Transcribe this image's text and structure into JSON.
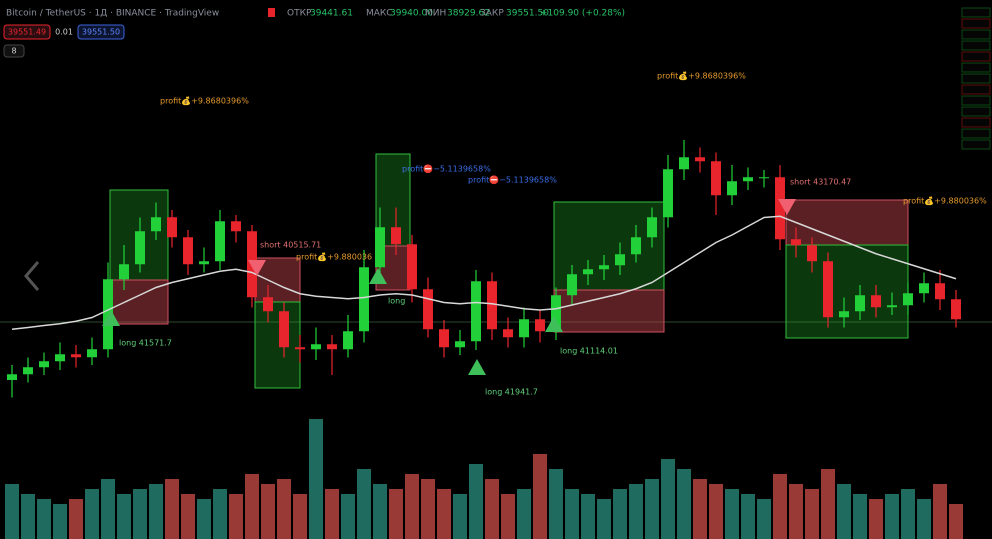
{
  "header": {
    "symbol": "Bitcoin / TetherUS · 1Д · BINANCE · TradingView",
    "open_label": "ОТКР",
    "open": "39441.61",
    "high_label": "МАКС",
    "high": "39940.00",
    "low_label": "МИН",
    "low": "38929.62",
    "close_label": "ЗАКР",
    "close": "39551.50",
    "change": "+109.90 (+0.28%)",
    "bid": "39551.49",
    "spread": "0.01",
    "ask": "39551.50",
    "indicators": "8"
  },
  "chart_data": {
    "type": "candlestick",
    "ylim": [
      35200,
      50800
    ],
    "volume_lim": [
      0,
      140
    ],
    "up_color": "#22d13a",
    "down_color": "#e8252d",
    "volume_up_color": "#1f6b60",
    "volume_down_color": "#9a3a36",
    "ma_color": "#d8d8d8",
    "open": [
      37200,
      37430,
      37710,
      37950,
      38230,
      38110,
      38430,
      41230,
      41830,
      43150,
      43710,
      42910,
      41830,
      41950,
      43550,
      43150,
      40510,
      39950,
      38510,
      38430,
      38630,
      38430,
      39150,
      41710,
      43310,
      42630,
      40830,
      39230,
      38510,
      38750,
      41150,
      39230,
      38910,
      39630,
      39150,
      40590,
      41430,
      41630,
      41790,
      42230,
      42910,
      43710,
      45630,
      46110,
      45950,
      44590,
      45150,
      45310,
      45310,
      42830,
      42590,
      41950,
      39710,
      39950,
      40590,
      40110,
      40190,
      40670,
      41070,
      40430
    ],
    "high": [
      37800,
      38100,
      38300,
      38700,
      38600,
      38900,
      41900,
      42600,
      43700,
      44300,
      44000,
      43200,
      42500,
      44000,
      43800,
      43400,
      41000,
      40300,
      39000,
      39300,
      39000,
      39800,
      42400,
      44100,
      44100,
      43000,
      41300,
      39600,
      39200,
      41600,
      41500,
      39700,
      40100,
      40000,
      40900,
      41800,
      42000,
      42200,
      42700,
      43400,
      44100,
      46200,
      46800,
      46500,
      46300,
      45800,
      45700,
      45600,
      45800,
      43300,
      42900,
      42300,
      40500,
      41000,
      41000,
      40700,
      41100,
      41500,
      41600,
      40800
    ],
    "low": [
      36500,
      37100,
      37400,
      37600,
      37700,
      37800,
      38100,
      40800,
      41500,
      42800,
      42500,
      41400,
      41500,
      41600,
      42700,
      40100,
      39500,
      38100,
      37900,
      38000,
      37400,
      38100,
      38700,
      41300,
      42200,
      40300,
      38900,
      38100,
      38200,
      38400,
      38800,
      38500,
      38500,
      38700,
      38800,
      40200,
      41000,
      41200,
      41400,
      41900,
      42500,
      43300,
      45200,
      45500,
      43800,
      44200,
      44800,
      44900,
      42400,
      42100,
      41500,
      39300,
      39300,
      39600,
      39700,
      39800,
      39800,
      40300,
      40000,
      39300
    ],
    "close": [
      37430,
      37710,
      37950,
      38230,
      38110,
      38430,
      41230,
      41830,
      43150,
      43710,
      42910,
      41830,
      41950,
      43550,
      43150,
      40510,
      39950,
      38510,
      38430,
      38630,
      38430,
      39150,
      41710,
      43310,
      42630,
      40830,
      39230,
      38510,
      38750,
      41150,
      39230,
      38910,
      39630,
      39150,
      40590,
      41430,
      41630,
      41790,
      42230,
      42910,
      43710,
      45630,
      46110,
      45950,
      44590,
      45150,
      45310,
      45310,
      42830,
      42590,
      41950,
      39710,
      39950,
      40590,
      40110,
      40190,
      40670,
      41070,
      40430,
      39630
    ],
    "volume": [
      55,
      45,
      40,
      35,
      40,
      50,
      60,
      45,
      50,
      55,
      60,
      45,
      40,
      50,
      45,
      65,
      55,
      60,
      45,
      120,
      50,
      45,
      70,
      55,
      50,
      65,
      60,
      50,
      45,
      75,
      60,
      45,
      50,
      85,
      70,
      50,
      45,
      40,
      50,
      55,
      60,
      80,
      70,
      60,
      55,
      50,
      45,
      40,
      65,
      55,
      50,
      70,
      55,
      45,
      40,
      45,
      50,
      40,
      55,
      35
    ],
    "ma": [
      39230,
      39300,
      39380,
      39450,
      39550,
      39700,
      40000,
      40300,
      40600,
      40900,
      41100,
      41250,
      41400,
      41550,
      41630,
      41500,
      41200,
      40900,
      40650,
      40550,
      40500,
      40450,
      40500,
      40600,
      40650,
      40600,
      40450,
      40300,
      40250,
      40300,
      40250,
      40150,
      40050,
      40000,
      40050,
      40200,
      40350,
      40500,
      40650,
      40850,
      41100,
      41500,
      41900,
      42300,
      42700,
      43000,
      43350,
      43700,
      43750,
      43500,
      43250,
      43000,
      42750,
      42500,
      42250,
      42050,
      41850,
      41650,
      41450,
      41250
    ],
    "annotations": [
      "profit💰+9.8680396%",
      "profit💰+9.8680396%",
      "profit⛔−5.1139658%",
      "profit⛔−5.1139658%",
      "short 40515.71",
      "profit💰+9.880036",
      "long 41571.7",
      "long 41941.7",
      "long 41114.01",
      "short 43170.47",
      "profit💰+9.880036%",
      "long"
    ]
  }
}
